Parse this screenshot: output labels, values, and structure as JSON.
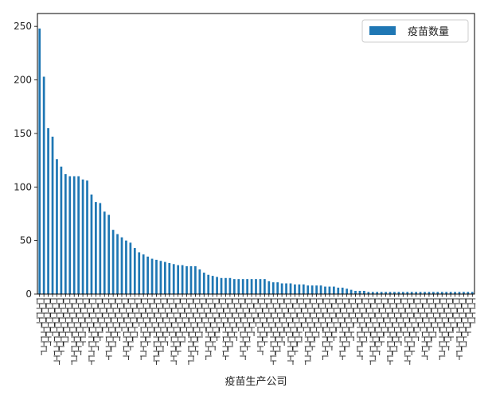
{
  "chart_data": {
    "type": "bar",
    "title": "",
    "xlabel": "疫苗生产公司",
    "ylabel": "",
    "ylim": [
      0,
      262
    ],
    "yticks": [
      0,
      50,
      100,
      150,
      200,
      250
    ],
    "grid": false,
    "legend_position": "top-right",
    "x_tick_labels_legible": false,
    "series": [
      {
        "name": "疫苗数量",
        "color": "#1f77b4",
        "values": [
          248,
          203,
          155,
          147,
          126,
          119,
          112,
          110,
          110,
          110,
          107,
          106,
          93,
          86,
          85,
          77,
          74,
          60,
          56,
          53,
          50,
          48,
          43,
          39,
          37,
          35,
          33,
          32,
          31,
          30,
          29,
          28,
          27,
          27,
          26,
          26,
          26,
          23,
          20,
          18,
          17,
          16,
          15,
          15,
          15,
          14,
          14,
          14,
          14,
          14,
          14,
          14,
          14,
          12,
          11,
          11,
          10,
          10,
          10,
          9,
          9,
          9,
          8,
          8,
          8,
          8,
          7,
          7,
          7,
          6,
          6,
          5,
          4,
          3,
          3,
          3,
          2,
          2,
          2,
          2,
          2,
          2,
          2,
          2,
          2,
          2,
          2,
          2,
          2,
          2,
          2,
          2,
          2,
          2,
          2,
          2,
          2,
          2,
          2,
          2,
          2
        ]
      }
    ]
  }
}
